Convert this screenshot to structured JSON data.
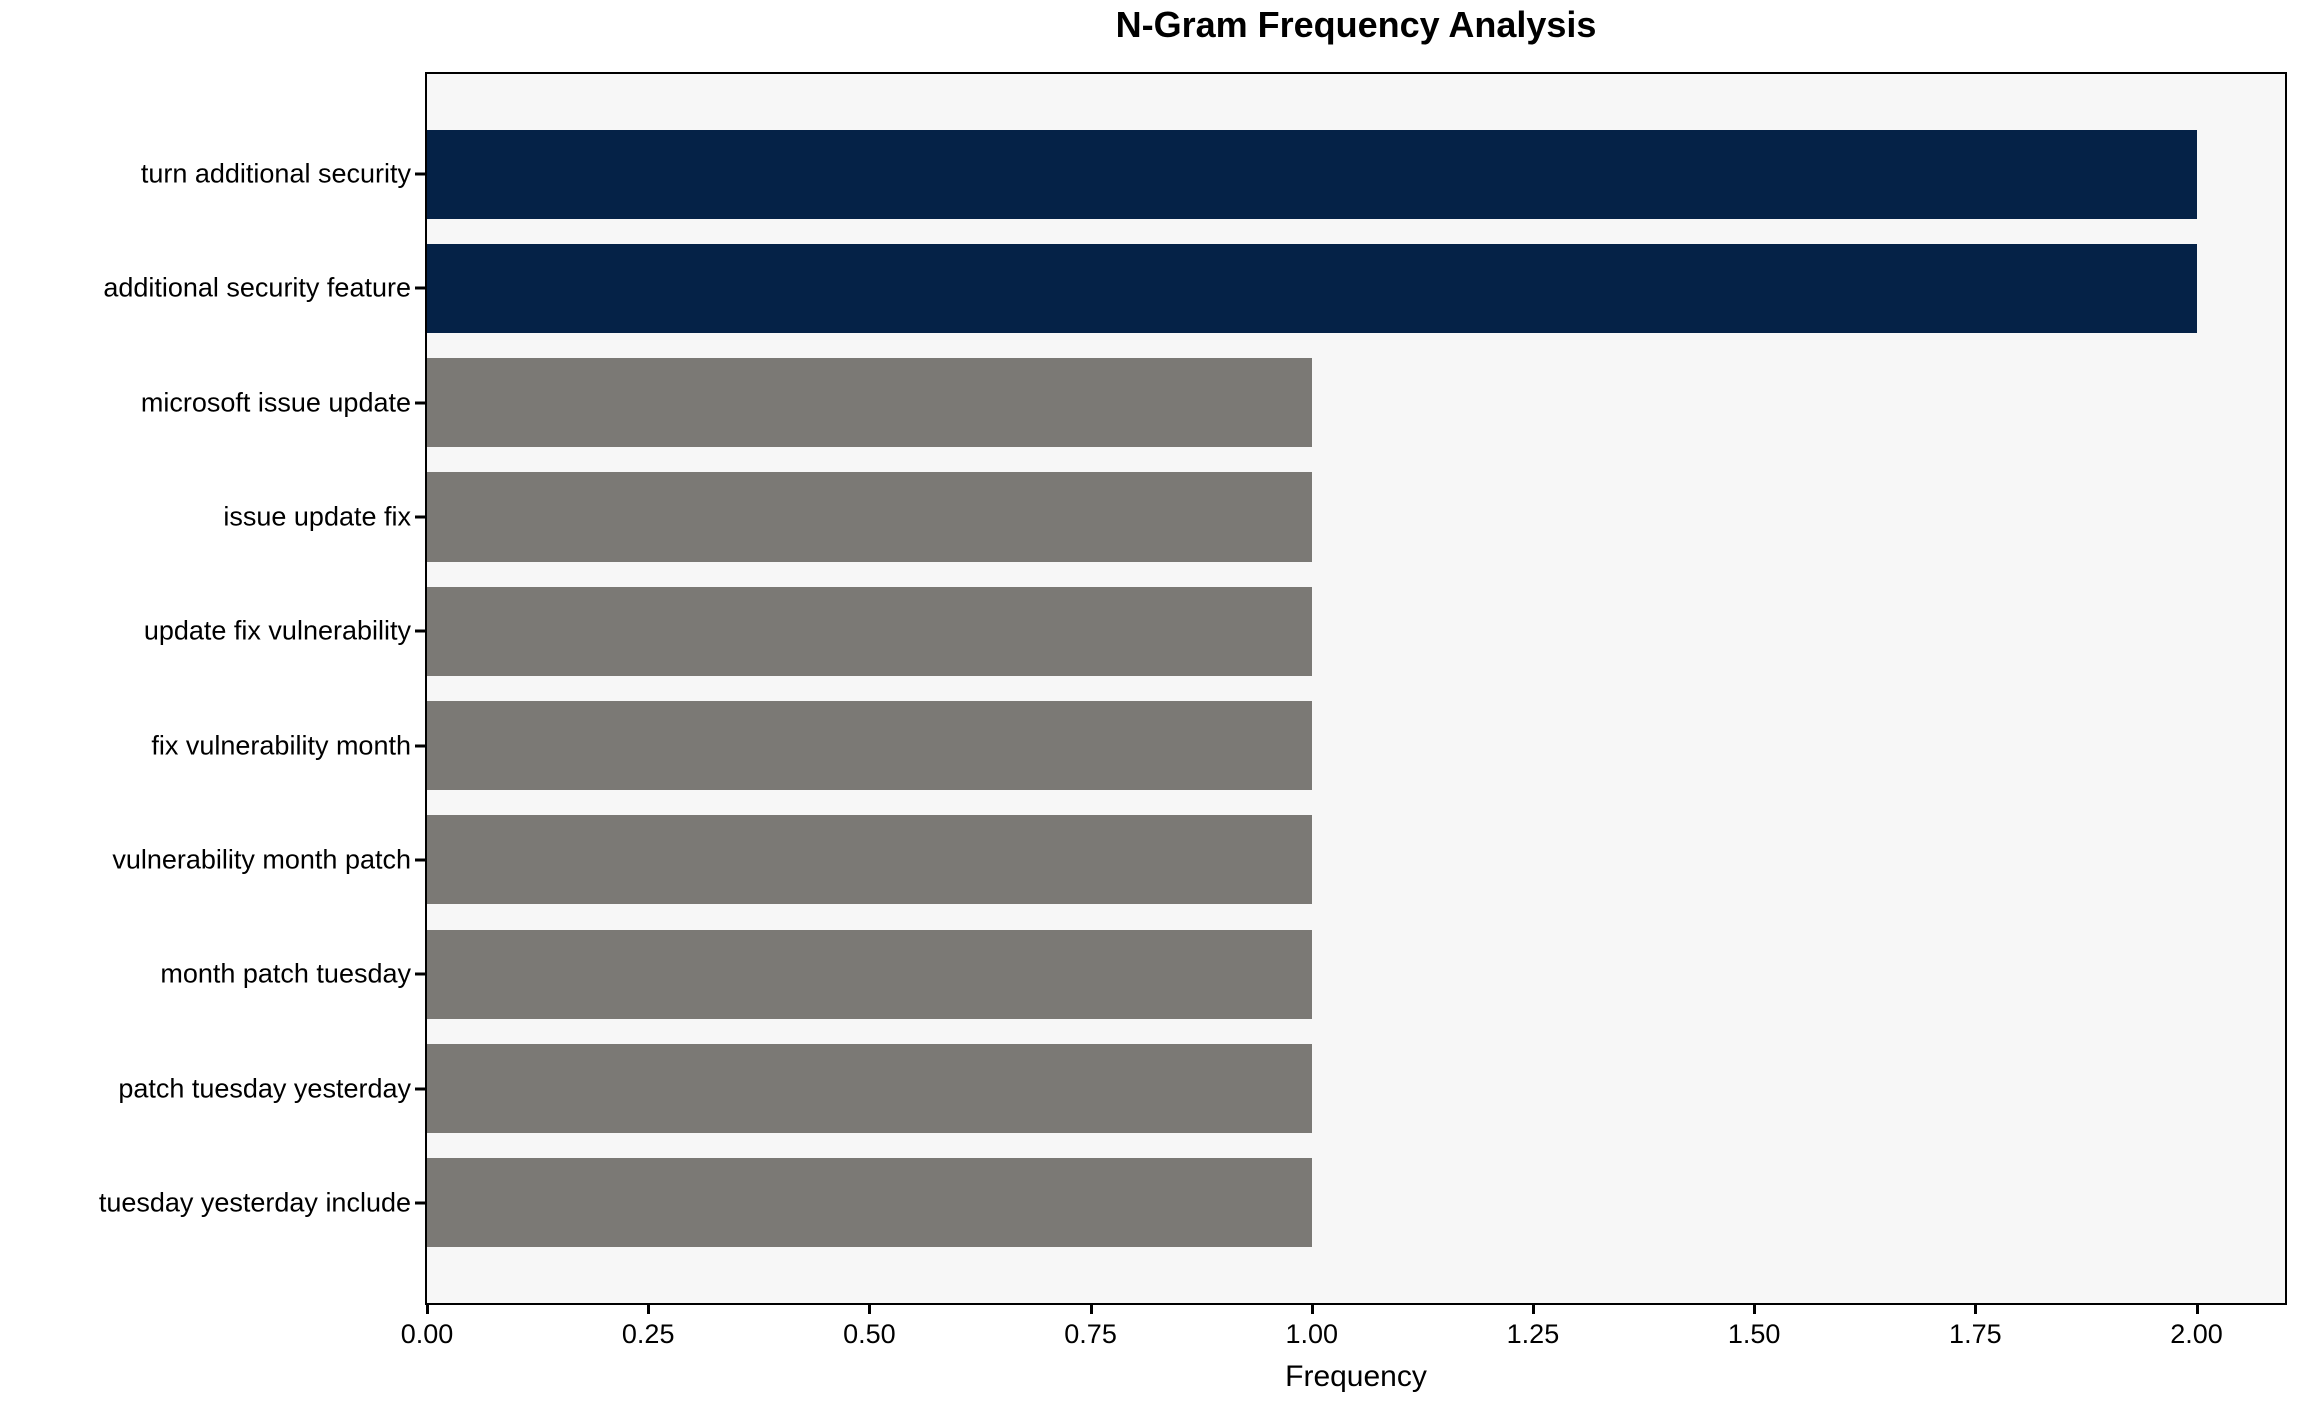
{
  "chart_data": {
    "type": "bar",
    "orientation": "horizontal",
    "title": "N-Gram Frequency Analysis",
    "xlabel": "Frequency",
    "ylabel": "",
    "categories": [
      "turn additional security",
      "additional security feature",
      "microsoft issue update",
      "issue update fix",
      "update fix vulnerability",
      "fix vulnerability month",
      "vulnerability month patch",
      "month patch tuesday",
      "patch tuesday yesterday",
      "tuesday yesterday include"
    ],
    "values": [
      2,
      2,
      1,
      1,
      1,
      1,
      1,
      1,
      1,
      1
    ],
    "bar_colors": [
      "#052247",
      "#052247",
      "#7b7975",
      "#7b7975",
      "#7b7975",
      "#7b7975",
      "#7b7975",
      "#7b7975",
      "#7b7975",
      "#7b7975"
    ],
    "highlight_color": "#052247",
    "default_color": "#7b7975",
    "xlim": [
      0,
      2.1
    ],
    "xticks": [
      "0.00",
      "0.25",
      "0.50",
      "0.75",
      "1.00",
      "1.25",
      "1.50",
      "1.75",
      "2.00"
    ],
    "xtick_values": [
      0,
      0.25,
      0.5,
      0.75,
      1.0,
      1.25,
      1.5,
      1.75,
      2.0
    ],
    "grid": false,
    "legend": null,
    "plot_background": "#f7f7f7",
    "figure_background": "#ffffff",
    "spine_color": "#000000"
  }
}
